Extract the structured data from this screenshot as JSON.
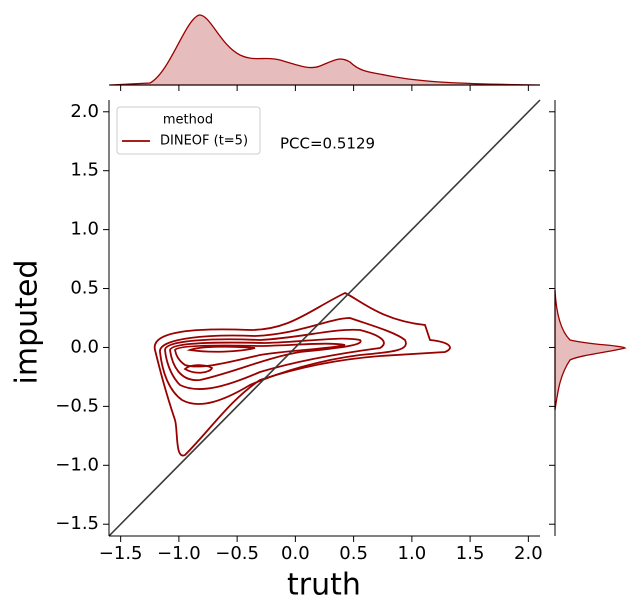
{
  "chart_data": {
    "type": "kde",
    "xlabel": "truth",
    "ylabel": "imputed",
    "xlim": [
      -1.6,
      2.1
    ],
    "ylim": [
      -1.6,
      2.1
    ],
    "xticks": [
      {
        "value": -1.5,
        "label": "−1.5"
      },
      {
        "value": -1.0,
        "label": "−1.0"
      },
      {
        "value": -0.5,
        "label": "−0.5"
      },
      {
        "value": 0.0,
        "label": "0.0"
      },
      {
        "value": 0.5,
        "label": "0.5"
      },
      {
        "value": 1.0,
        "label": "1.0"
      },
      {
        "value": 1.5,
        "label": "1.5"
      },
      {
        "value": 2.0,
        "label": "2.0"
      }
    ],
    "yticks": [
      {
        "value": -1.5,
        "label": "−1.5"
      },
      {
        "value": -1.0,
        "label": "−1.0"
      },
      {
        "value": -0.5,
        "label": "−0.5"
      },
      {
        "value": 0.0,
        "label": "0.0"
      },
      {
        "value": 0.5,
        "label": "0.5"
      },
      {
        "value": 1.0,
        "label": "1.0"
      },
      {
        "value": 1.5,
        "label": "1.5"
      },
      {
        "value": 2.0,
        "label": "2.0"
      }
    ],
    "legend": {
      "title": "method",
      "loc": "upper left"
    },
    "series": [
      {
        "name": "DINEOF (t=5)",
        "color": "#990000"
      }
    ],
    "annotation": "PCC=0.5129"
  }
}
